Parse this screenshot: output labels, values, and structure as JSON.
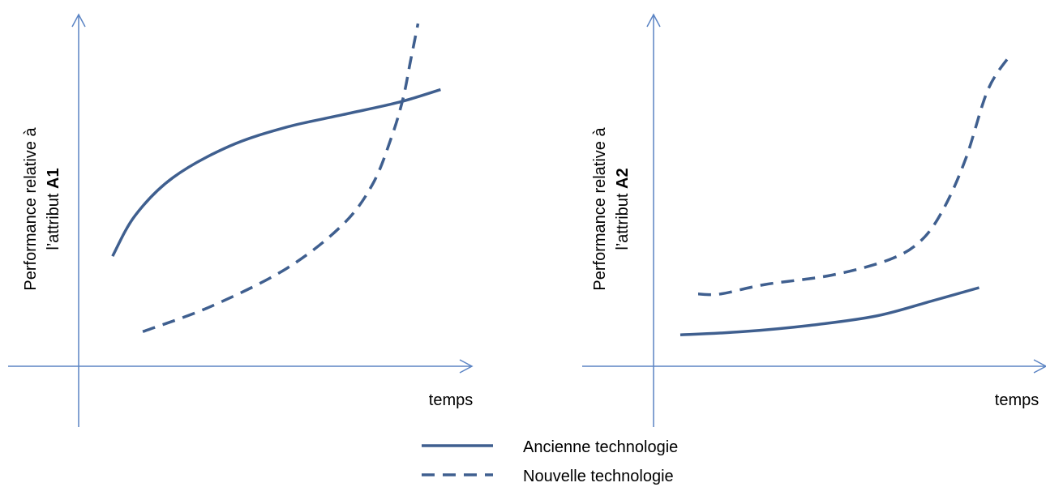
{
  "colors": {
    "axis": "#5b84c4",
    "series": "#3f5f8f"
  },
  "legend": {
    "items": [
      {
        "label": "Ancienne technologie",
        "style": "solid"
      },
      {
        "label": "Nouvelle technologie",
        "style": "dashed"
      }
    ]
  },
  "chart_data": [
    {
      "type": "line",
      "xlabel": "temps",
      "ylabel": {
        "line1": "Performance relative à",
        "line2_prefix": "l’attribut ",
        "line2_bold": "A1"
      },
      "xlim": [
        0,
        10
      ],
      "ylim": [
        0,
        10
      ],
      "grid": false,
      "series": [
        {
          "name": "Ancienne technologie",
          "style": "solid",
          "points": [
            [
              0.9,
              3.5
            ],
            [
              1.5,
              4.8
            ],
            [
              2.5,
              6.0
            ],
            [
              4.0,
              7.0
            ],
            [
              5.5,
              7.6
            ],
            [
              7.0,
              8.0
            ],
            [
              8.5,
              8.4
            ],
            [
              9.6,
              8.8
            ]
          ]
        },
        {
          "name": "Nouvelle technologie",
          "style": "dashed",
          "points": [
            [
              1.7,
              1.1
            ],
            [
              3.5,
              1.9
            ],
            [
              5.5,
              3.1
            ],
            [
              7.0,
              4.5
            ],
            [
              7.8,
              5.8
            ],
            [
              8.3,
              7.3
            ],
            [
              8.6,
              8.5
            ],
            [
              8.8,
              9.7
            ],
            [
              9.0,
              10.9
            ]
          ]
        }
      ]
    },
    {
      "type": "line",
      "xlabel": "temps",
      "ylabel": {
        "line1": "Performance relative à",
        "line2_prefix": "l’attribut ",
        "line2_bold": "A2"
      },
      "xlim": [
        0,
        10
      ],
      "ylim": [
        0,
        10
      ],
      "grid": false,
      "series": [
        {
          "name": "Ancienne technologie",
          "style": "solid",
          "points": [
            [
              0.6,
              1.0
            ],
            [
              2.0,
              1.1
            ],
            [
              3.5,
              1.3
            ],
            [
              5.0,
              1.6
            ],
            [
              6.3,
              2.1
            ],
            [
              7.3,
              2.5
            ]
          ]
        },
        {
          "name": "Nouvelle technologie",
          "style": "dashed",
          "points": [
            [
              1.0,
              2.3
            ],
            [
              1.5,
              2.3
            ],
            [
              2.5,
              2.6
            ],
            [
              4.0,
              2.9
            ],
            [
              5.3,
              3.4
            ],
            [
              6.0,
              4.0
            ],
            [
              6.5,
              5.0
            ],
            [
              7.0,
              6.6
            ],
            [
              7.5,
              8.8
            ],
            [
              8.0,
              9.9
            ]
          ]
        }
      ]
    }
  ]
}
